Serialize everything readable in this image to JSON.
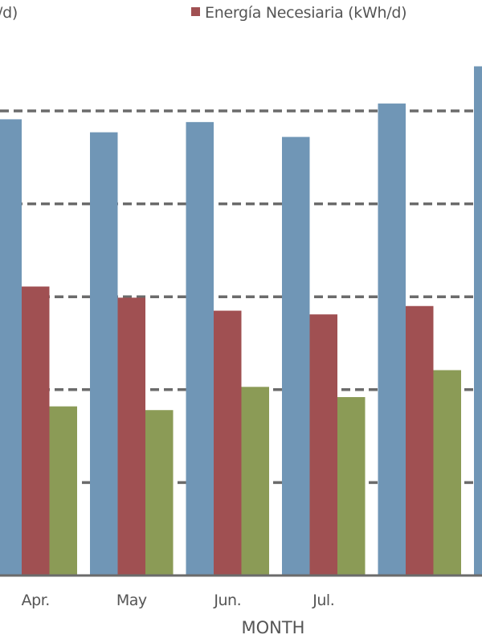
{
  "chart_data": {
    "type": "bar",
    "title": "",
    "xlabel": "MONTH",
    "ylabel": "",
    "categories": [
      "Apr.",
      "May",
      "Jun.",
      "Jul.",
      "",
      ""
    ],
    "series": [
      {
        "name": "(kWh/d)",
        "legend_text": "/d)",
        "color": "#7096b6",
        "values": [
          4.91,
          4.77,
          4.88,
          4.72,
          5.08,
          5.48
        ]
      },
      {
        "name": "Energía Necesiaria (kWh/d)",
        "color": "#a05052",
        "values": [
          3.11,
          2.99,
          2.85,
          2.81,
          2.9,
          null
        ]
      },
      {
        "name": "",
        "color": "#8b9b56",
        "values": [
          1.82,
          1.78,
          2.03,
          1.92,
          2.21,
          null
        ]
      }
    ],
    "ylim": [
      0,
      6.2
    ],
    "gridlines": [
      1,
      2,
      3,
      4,
      5
    ],
    "grid": true,
    "grid_style": "dashed",
    "legend_placement": "top"
  }
}
